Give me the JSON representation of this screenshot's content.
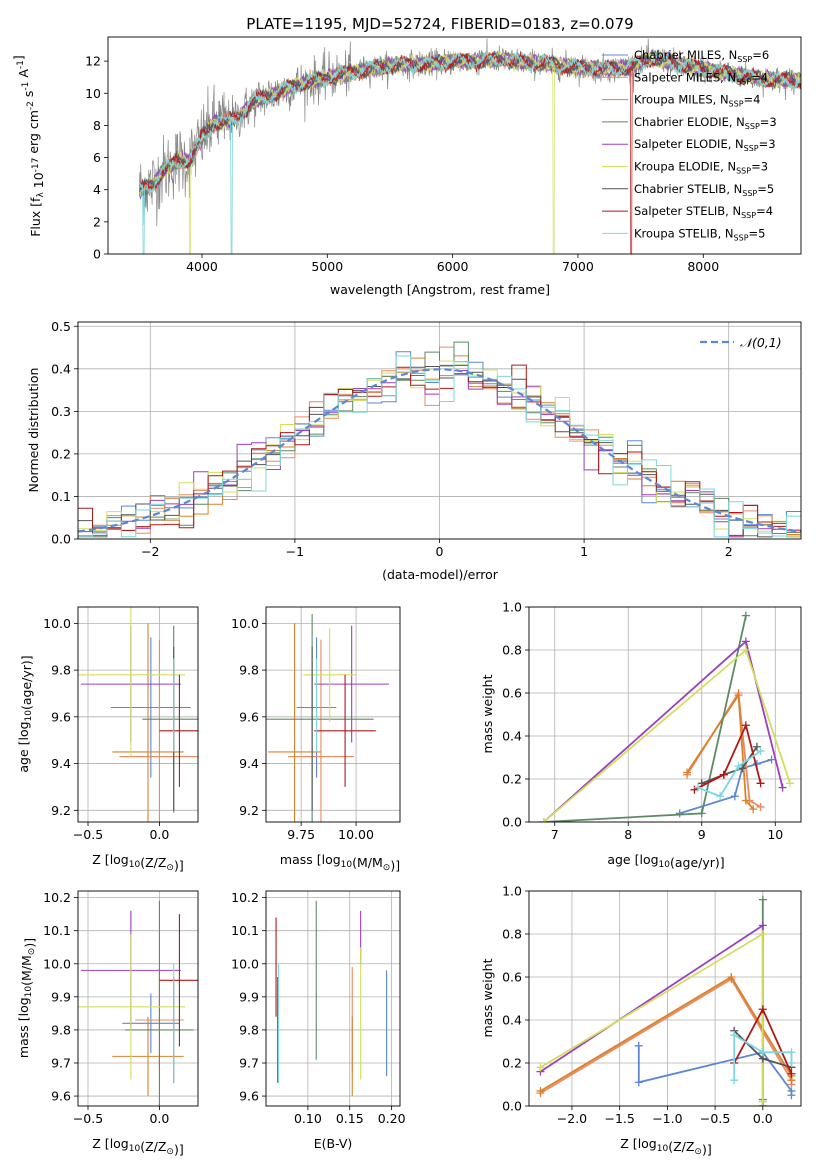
{
  "figure_title": "PLATE=1195, MJD=52724, FIBERID=0183, z=0.079",
  "models": [
    {
      "name": "Chabrier MILES",
      "nssp": "6",
      "color": "#5b87d6"
    },
    {
      "name": "Salpeter MILES",
      "nssp": "4",
      "color": "#e98a5f"
    },
    {
      "name": "Kroupa MILES",
      "nssp": "4",
      "color": "#d9822b"
    },
    {
      "name": "Chabrier ELODIE",
      "nssp": "3",
      "color": "#5d8a63"
    },
    {
      "name": "Salpeter ELODIE",
      "nssp": "3",
      "color": "#9b3fbf"
    },
    {
      "name": "Kroupa ELODIE",
      "nssp": "3",
      "color": "#d4dd5f"
    },
    {
      "name": "Chabrier STELIB",
      "nssp": "5",
      "color": "#555555"
    },
    {
      "name": "Salpeter STELIB",
      "nssp": "4",
      "color": "#b01818"
    },
    {
      "name": "Kroupa STELIB",
      "nssp": "5",
      "color": "#7fd6dc"
    }
  ],
  "chart_data": [
    {
      "id": "spectrum",
      "type": "line",
      "xlabel": "wavelength [Angstrom, rest frame]",
      "ylabel": "Flux [f_λ 10^-17 erg cm^-2 s^-1 A^-1]",
      "xlim": [
        3250,
        8780
      ],
      "ylim": [
        0,
        13.5
      ],
      "xticks": [
        4000,
        5000,
        6000,
        7000,
        8000
      ],
      "yticks": [
        0,
        2,
        4,
        6,
        8,
        10,
        12
      ],
      "legend": "top-right",
      "data_trend": {
        "x": [
          3500,
          3600,
          3700,
          3800,
          3900,
          4000,
          4100,
          4200,
          4300,
          4400,
          4500,
          4600,
          4700,
          4800,
          4900,
          5000,
          5200,
          5400,
          5600,
          5800,
          6000,
          6200,
          6400,
          6600,
          6800,
          7000,
          7200,
          7400,
          7600,
          7800,
          8000,
          8200,
          8400,
          8600
        ],
        "y": [
          4.0,
          4.3,
          5.2,
          5.8,
          5.8,
          7.2,
          8.2,
          8.2,
          8.6,
          9.4,
          9.8,
          10.0,
          10.4,
          10.6,
          10.8,
          11.0,
          11.3,
          11.6,
          11.8,
          11.8,
          12.0,
          12.0,
          12.1,
          11.9,
          11.8,
          11.6,
          11.5,
          11.6,
          12.2,
          11.8,
          11.5,
          11.2,
          11.0,
          10.8
        ]
      },
      "model_dropouts": [
        {
          "model": "Kroupa STELIB",
          "x_start": 3530,
          "x_end": 3540
        },
        {
          "model": "Kroupa ELODIE",
          "x_start": 3900,
          "x_end": 3910
        },
        {
          "model": "Kroupa STELIB",
          "x_start": 4230,
          "x_end": 4240
        },
        {
          "model": "Kroupa ELODIE",
          "x_start": 6800,
          "x_end": 6810
        },
        {
          "model": "Salpeter STELIB",
          "x_start": 7420,
          "x_end": 7430
        }
      ]
    },
    {
      "id": "residual_histogram",
      "type": "histogram",
      "xlabel": "(data-model)/error",
      "ylabel": "Normed distribution",
      "xlim": [
        -2.5,
        2.5
      ],
      "ylim": [
        0,
        0.51
      ],
      "xticks": [
        -2,
        -1,
        0,
        1,
        2
      ],
      "yticks": [
        0.0,
        0.1,
        0.2,
        0.3,
        0.4,
        0.5
      ],
      "grid": true,
      "legend": "top-right",
      "reference_label": "𝒩(0,1)",
      "reference_color": "#5b87d6",
      "bin_width": 0.1
    },
    {
      "id": "age_vs_Z",
      "type": "errorbar",
      "xlabel": "Z [log10(Z/Z⊙)]",
      "ylabel": "age  [log10(age/yr)]",
      "xlim": [
        -0.57,
        0.27
      ],
      "ylim": [
        9.15,
        10.07
      ],
      "xticks": [
        -0.5,
        0.0
      ],
      "yticks": [
        9.2,
        9.4,
        9.6,
        9.8,
        10.0
      ],
      "points": [
        {
          "model": "Chabrier MILES",
          "x": -0.06,
          "xerr": 0.28,
          "y": 9.64,
          "yerr": 0.3
        },
        {
          "model": "Salpeter MILES",
          "x": 0.0,
          "xerr": 0.28,
          "y": 9.43,
          "yerr": 0.5
        },
        {
          "model": "Kroupa MILES",
          "x": -0.08,
          "xerr": 0.25,
          "y": 9.45,
          "yerr": 0.55
        },
        {
          "model": "Chabrier ELODIE",
          "x": 0.1,
          "xerr": 0.22,
          "y": 9.59,
          "yerr": 0.4
        },
        {
          "model": "Salpeter ELODIE",
          "x": -0.2,
          "xerr": 0.35,
          "y": 9.74,
          "yerr": 0.25
        },
        {
          "model": "Kroupa ELODIE",
          "x": -0.2,
          "xerr": 0.38,
          "y": 9.78,
          "yerr": 0.35
        },
        {
          "model": "Chabrier STELIB",
          "x": 0.1,
          "xerr": 0.0,
          "y": 9.55,
          "yerr": 0.35
        },
        {
          "model": "Salpeter STELIB",
          "x": 0.14,
          "xerr": 0.14,
          "y": 9.54,
          "yerr": 0.24
        },
        {
          "model": "Kroupa STELIB",
          "x": 0.1,
          "xerr": 0.0,
          "y": 9.65,
          "yerr": 0.2
        }
      ]
    },
    {
      "id": "age_vs_mass",
      "type": "errorbar",
      "xlabel": "mass [log10(M/M⊙)]",
      "ylabel": "",
      "xlim": [
        9.59,
        10.2
      ],
      "ylim": [
        9.15,
        10.07
      ],
      "xticks": [
        9.75,
        10.0
      ],
      "yticks": [
        9.2,
        9.4,
        9.6,
        9.8,
        10.0
      ],
      "points": [
        {
          "model": "Chabrier MILES",
          "x": 9.82,
          "xerr": 0.09,
          "y": 9.64,
          "yerr": 0.3
        },
        {
          "model": "Salpeter MILES",
          "x": 9.84,
          "xerr": 0.15,
          "y": 9.43,
          "yerr": 0.5
        },
        {
          "model": "Kroupa MILES",
          "x": 9.72,
          "xerr": 0.12,
          "y": 9.45,
          "yerr": 0.55
        },
        {
          "model": "Chabrier ELODIE",
          "x": 9.8,
          "xerr": 0.28,
          "y": 9.59,
          "yerr": 0.45
        },
        {
          "model": "Salpeter ELODIE",
          "x": 9.98,
          "xerr": 0.17,
          "y": 9.74,
          "yerr": 0.25
        },
        {
          "model": "Kroupa ELODIE",
          "x": 9.88,
          "xerr": 0.12,
          "y": 9.78,
          "yerr": 0.2
        },
        {
          "model": "Chabrier STELIB",
          "x": 9.8,
          "xerr": 0.0,
          "y": 9.55,
          "yerr": 0.35
        },
        {
          "model": "Salpeter STELIB",
          "x": 9.95,
          "xerr": 0.14,
          "y": 9.54,
          "yerr": 0.24
        },
        {
          "model": "Kroupa STELIB",
          "x": 9.82,
          "xerr": 0.0,
          "y": 9.65,
          "yerr": 0.2
        }
      ]
    },
    {
      "id": "weight_vs_age",
      "type": "line",
      "xlabel": "age  [log10(age/yr)]",
      "ylabel": "mass weight",
      "xlim": [
        6.65,
        10.35
      ],
      "ylim": [
        0,
        1.0
      ],
      "xticks": [
        7,
        8,
        9,
        10
      ],
      "yticks": [
        0.0,
        0.2,
        0.4,
        0.6,
        0.8,
        1.0
      ],
      "grid": true,
      "series": [
        {
          "model": "Chabrier MILES",
          "x": [
            8.7,
            9.45,
            9.55,
            9.75,
            9.95
          ],
          "y": [
            0.04,
            0.12,
            0.25,
            0.27,
            0.29
          ]
        },
        {
          "model": "Salpeter MILES",
          "x": [
            8.8,
            9.5,
            9.65,
            9.8
          ],
          "y": [
            0.22,
            0.6,
            0.1,
            0.07
          ]
        },
        {
          "model": "Kroupa MILES",
          "x": [
            8.8,
            9.5,
            9.6,
            9.7
          ],
          "y": [
            0.23,
            0.59,
            0.1,
            0.06
          ]
        },
        {
          "model": "Chabrier ELODIE",
          "x": [
            6.85,
            9.0,
            9.6
          ],
          "y": [
            0.0,
            0.04,
            0.96
          ]
        },
        {
          "model": "Salpeter ELODIE",
          "x": [
            6.85,
            9.6,
            10.1
          ],
          "y": [
            0.0,
            0.84,
            0.16
          ]
        },
        {
          "model": "Kroupa ELODIE",
          "x": [
            6.85,
            9.6,
            10.2
          ],
          "y": [
            0.0,
            0.8,
            0.18
          ]
        },
        {
          "model": "Chabrier STELIB",
          "x": [
            9.0,
            9.3,
            9.55,
            9.75
          ],
          "y": [
            0.18,
            0.22,
            0.25,
            0.35
          ]
        },
        {
          "model": "Salpeter STELIB",
          "x": [
            8.9,
            9.3,
            9.6,
            9.8
          ],
          "y": [
            0.15,
            0.22,
            0.45,
            0.18
          ]
        },
        {
          "model": "Kroupa STELIB",
          "x": [
            8.95,
            9.25,
            9.5,
            9.8
          ],
          "y": [
            0.16,
            0.12,
            0.26,
            0.33
          ]
        }
      ]
    },
    {
      "id": "mass_vs_Z",
      "type": "errorbar",
      "xlabel": "Z [log10(Z/Z⊙)]",
      "ylabel": "mass [log10(M/M⊙)]",
      "xlim": [
        -0.57,
        0.27
      ],
      "ylim": [
        9.57,
        10.22
      ],
      "xticks": [
        -0.5,
        0.0
      ],
      "yticks": [
        9.6,
        9.7,
        9.8,
        9.9,
        10.0,
        10.1,
        10.2
      ],
      "points": [
        {
          "model": "Chabrier MILES",
          "x": -0.06,
          "xerr": 0.2,
          "y": 9.82,
          "yerr": 0.09
        },
        {
          "model": "Salpeter MILES",
          "x": 0.0,
          "xerr": 0.17,
          "y": 9.83,
          "yerr": 0.15
        },
        {
          "model": "Kroupa MILES",
          "x": -0.08,
          "xerr": 0.25,
          "y": 9.72,
          "yerr": 0.12
        },
        {
          "model": "Chabrier ELODIE",
          "x": 0.0,
          "xerr": 0.24,
          "y": 9.8,
          "yerr": 0.39
        },
        {
          "model": "Salpeter ELODIE",
          "x": -0.2,
          "xerr": 0.35,
          "y": 9.98,
          "yerr": 0.18
        },
        {
          "model": "Kroupa ELODIE",
          "x": -0.2,
          "xerr": 0.38,
          "y": 9.87,
          "yerr": 0.22
        },
        {
          "model": "Chabrier STELIB",
          "x": 0.1,
          "xerr": 0.0,
          "y": 9.8,
          "yerr": 0.16
        },
        {
          "model": "Salpeter STELIB",
          "x": 0.14,
          "xerr": 0.14,
          "y": 9.95,
          "yerr": 0.2
        },
        {
          "model": "Kroupa STELIB",
          "x": 0.1,
          "xerr": 0.0,
          "y": 9.82,
          "yerr": 0.18
        }
      ]
    },
    {
      "id": "mass_vs_EBV",
      "type": "errorbar",
      "xlabel": "E(B-V)",
      "ylabel": "",
      "xlim": [
        0.05,
        0.21
      ],
      "ylim": [
        9.57,
        10.22
      ],
      "xticks": [
        0.1,
        0.15,
        0.2
      ],
      "yticks": [
        9.6,
        9.7,
        9.8,
        9.9,
        10.0,
        10.1,
        10.2
      ],
      "points": [
        {
          "model": "Chabrier MILES",
          "x": 0.194,
          "xerr": 0.0,
          "y": 9.82,
          "yerr": 0.16
        },
        {
          "model": "Salpeter MILES",
          "x": 0.153,
          "xerr": 0.0,
          "y": 9.83,
          "yerr": 0.16
        },
        {
          "model": "Kroupa MILES",
          "x": 0.153,
          "xerr": 0.0,
          "y": 9.72,
          "yerr": 0.12
        },
        {
          "model": "Chabrier ELODIE",
          "x": 0.11,
          "xerr": 0.0,
          "y": 9.95,
          "yerr": 0.24
        },
        {
          "model": "Salpeter ELODIE",
          "x": 0.163,
          "xerr": 0.0,
          "y": 10.08,
          "yerr": 0.08
        },
        {
          "model": "Kroupa ELODIE",
          "x": 0.163,
          "xerr": 0.0,
          "y": 9.85,
          "yerr": 0.2
        },
        {
          "model": "Chabrier STELIB",
          "x": 0.064,
          "xerr": 0.0,
          "y": 9.8,
          "yerr": 0.16
        },
        {
          "model": "Salpeter STELIB",
          "x": 0.062,
          "xerr": 0.0,
          "y": 9.99,
          "yerr": 0.15
        },
        {
          "model": "Kroupa STELIB",
          "x": 0.065,
          "xerr": 0.0,
          "y": 9.82,
          "yerr": 0.18
        }
      ]
    },
    {
      "id": "weight_vs_Z",
      "type": "line",
      "xlabel": "Z [log10(Z/Z⊙)]",
      "ylabel": "mass weight",
      "xlim": [
        -2.45,
        0.4
      ],
      "ylim": [
        0,
        1.0
      ],
      "xticks": [
        -2.0,
        -1.5,
        -1.0,
        -0.5,
        0.0
      ],
      "yticks": [
        0.0,
        0.2,
        0.4,
        0.6,
        0.8,
        1.0
      ],
      "grid": true,
      "series": [
        {
          "model": "Chabrier MILES",
          "x": [
            -1.3,
            -1.3,
            0.0,
            0.3,
            0.3
          ],
          "y": [
            0.28,
            0.11,
            0.25,
            0.07,
            0.05
          ]
        },
        {
          "model": "Salpeter MILES",
          "x": [
            -2.33,
            -0.33,
            0.3,
            0.3
          ],
          "y": [
            0.06,
            0.59,
            0.12,
            0.1
          ]
        },
        {
          "model": "Kroupa MILES",
          "x": [
            -2.33,
            -0.33,
            0.3,
            0.3
          ],
          "y": [
            0.07,
            0.6,
            0.14,
            0.12
          ]
        },
        {
          "model": "Chabrier ELODIE",
          "x": [
            0.0,
            0.0,
            0.0
          ],
          "y": [
            0.96,
            0.03,
            0.0
          ]
        },
        {
          "model": "Salpeter ELODIE",
          "x": [
            -2.33,
            0.0,
            0.0
          ],
          "y": [
            0.16,
            0.84,
            0.0
          ]
        },
        {
          "model": "Kroupa ELODIE",
          "x": [
            -2.33,
            0.0,
            0.0
          ],
          "y": [
            0.18,
            0.8,
            0.02
          ]
        },
        {
          "model": "Chabrier STELIB",
          "x": [
            -0.3,
            0.0,
            0.3
          ],
          "y": [
            0.35,
            0.22,
            0.18
          ]
        },
        {
          "model": "Salpeter STELIB",
          "x": [
            -0.3,
            0.0,
            0.3
          ],
          "y": [
            0.2,
            0.45,
            0.15
          ]
        },
        {
          "model": "Kroupa STELIB",
          "x": [
            -0.3,
            -0.3,
            0.0,
            0.3,
            0.3
          ],
          "y": [
            0.12,
            0.33,
            0.25,
            0.25,
            0.2
          ]
        }
      ]
    }
  ]
}
